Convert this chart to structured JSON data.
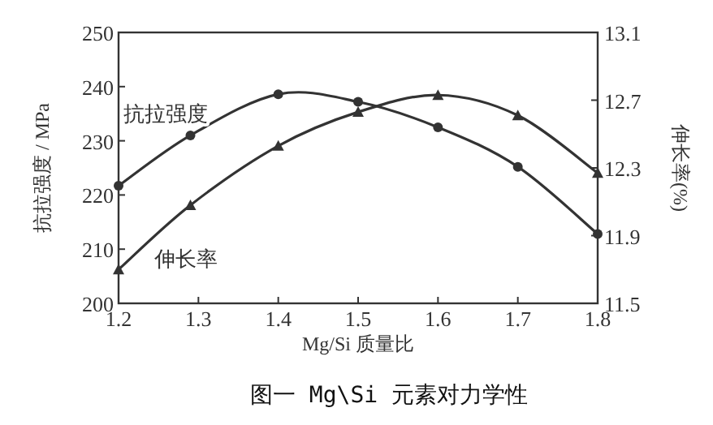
{
  "chart_data": {
    "type": "line",
    "xlabel": "Mg/Si 质量比",
    "ylabel": "抗拉强度 / MPa",
    "y2label": "伸长率(%)",
    "x": [
      1.2,
      1.29,
      1.4,
      1.5,
      1.6,
      1.7,
      1.8
    ],
    "series": [
      {
        "name": "抗拉强度",
        "color": "#333333",
        "marker": "circle",
        "values": [
          221.7,
          231,
          238.6,
          237.2,
          232.5,
          225.2,
          212.8
        ]
      },
      {
        "name": "伸长率",
        "color": "#333333",
        "marker": "triangle",
        "axis": "y2",
        "values": [
          11.7,
          12.08,
          12.43,
          12.63,
          12.73,
          12.61,
          12.27
        ]
      }
    ],
    "xlim": [
      1.2,
      1.8
    ],
    "xticks": [
      1.2,
      1.3,
      1.4,
      1.5,
      1.6,
      1.7,
      1.8
    ],
    "ylim": [
      200,
      250
    ],
    "yticks": [
      200,
      210,
      220,
      230,
      240,
      250
    ],
    "y2lim": [
      11.5,
      13.1
    ],
    "y2ticks": [
      11.5,
      11.9,
      12.3,
      12.7,
      13.1
    ],
    "annotations": [
      "图一 Mg\\Si 元素对力学性"
    ],
    "grid": false
  }
}
